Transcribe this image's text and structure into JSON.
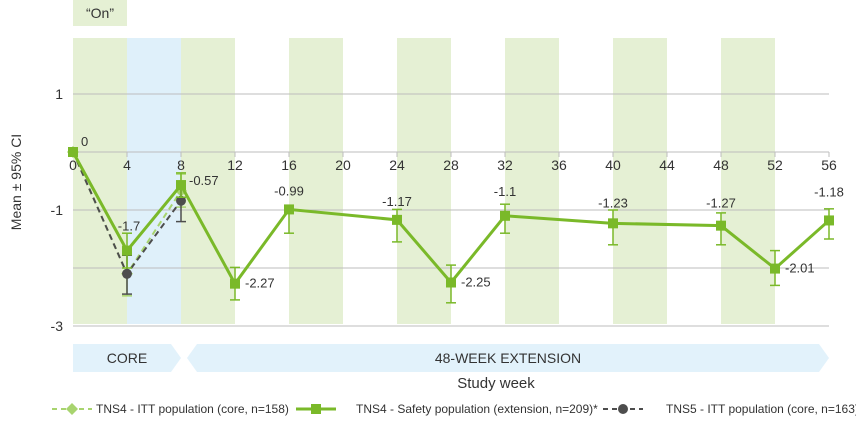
{
  "chart_data": {
    "type": "line",
    "ylabel": "Mean ± 95% CI",
    "xlabel": "Study week",
    "on_label": "“On”",
    "x_ticks": [
      0,
      4,
      8,
      12,
      16,
      20,
      24,
      28,
      32,
      36,
      40,
      44,
      48,
      52,
      56
    ],
    "y_ticks": [
      1,
      -1,
      -3
    ],
    "xlim": [
      0,
      56
    ],
    "ylim": [
      -3,
      2
    ],
    "phases": [
      {
        "label": "CORE",
        "from": 0,
        "to": 8
      },
      {
        "label": "48-WEEK EXTENSION",
        "from": 8,
        "to": 56
      }
    ],
    "on_periods": [
      [
        0,
        4
      ],
      [
        8,
        12
      ],
      [
        16,
        20
      ],
      [
        24,
        28
      ],
      [
        32,
        36
      ],
      [
        40,
        44
      ],
      [
        48,
        52
      ]
    ],
    "off_highlight": [
      4,
      8
    ],
    "series": [
      {
        "name": "TNS4 - ITT population (core, n=158)",
        "color": "#a8d46f",
        "style": "dashed",
        "marker": "diamond",
        "points": [
          {
            "x": 0,
            "y": 0,
            "lo": 0,
            "hi": 0
          },
          {
            "x": 4,
            "y": -2.1,
            "lo": -2.48,
            "hi": -1.75
          },
          {
            "x": 8,
            "y": -0.67,
            "lo": -0.95,
            "hi": -0.38
          }
        ]
      },
      {
        "name": "TNS4 - Safety population (extension, n=209)*",
        "color": "#7ab929",
        "style": "solid",
        "marker": "square",
        "points": [
          {
            "x": 0,
            "y": 0,
            "lo": 0,
            "hi": 0,
            "label": "0"
          },
          {
            "x": 4,
            "y": -1.7,
            "lo": -2.0,
            "hi": -1.4,
            "label": "-1.7"
          },
          {
            "x": 8,
            "y": -0.57,
            "lo": -0.78,
            "hi": -0.36,
            "label": "-0.57"
          },
          {
            "x": 12,
            "y": -2.27,
            "lo": -2.55,
            "hi": -1.99,
            "label": "-2.27"
          },
          {
            "x": 16,
            "y": -0.99,
            "lo": -1.4,
            "hi": -0.98,
            "label": "-0.99"
          },
          {
            "x": 24,
            "y": -1.17,
            "lo": -1.55,
            "hi": -0.99,
            "label": "-1.17"
          },
          {
            "x": 28,
            "y": -2.25,
            "lo": -2.6,
            "hi": -1.95,
            "label": "-2.25"
          },
          {
            "x": 32,
            "y": -1.1,
            "lo": -1.4,
            "hi": -0.9,
            "label": "-1.1"
          },
          {
            "x": 40,
            "y": -1.23,
            "lo": -1.6,
            "hi": -1.0,
            "label": "-1.23"
          },
          {
            "x": 48,
            "y": -1.27,
            "lo": -1.6,
            "hi": -1.05,
            "label": "-1.27"
          },
          {
            "x": 52,
            "y": -2.01,
            "lo": -2.3,
            "hi": -1.7,
            "label": "-2.01"
          },
          {
            "x": 56,
            "y": -1.18,
            "lo": -1.5,
            "hi": -0.98,
            "label": "-1.18"
          }
        ]
      },
      {
        "name": "TNS5 - ITT population (core, n=163)",
        "color": "#4d4d4d",
        "style": "dashed",
        "marker": "circle",
        "points": [
          {
            "x": 0,
            "y": 0,
            "lo": 0,
            "hi": 0
          },
          {
            "x": 4,
            "y": -2.1,
            "lo": -2.45,
            "hi": -1.78
          },
          {
            "x": 8,
            "y": -0.84,
            "lo": -1.2,
            "hi": -0.55
          }
        ]
      }
    ],
    "colors": {
      "on_band": "#e5f0d4",
      "off_band": "#dff0fa",
      "grid": "#bdbdbd",
      "text": "#333333",
      "phase_arrow": "#e2f2fb"
    }
  }
}
